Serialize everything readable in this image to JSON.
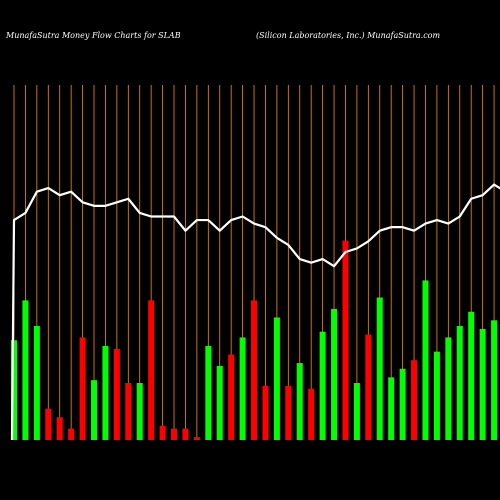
{
  "chart_data": {
    "type": "bar",
    "title_left": "MunafaSutra  Money Flow  Charts for SLAB",
    "title_right": "(Silicon  Laboratories,  Inc.) MunafaSutra.com",
    "grid": true,
    "grid_color": "#ff8c00",
    "up_color": "#00ff00",
    "down_color": "#ff0000",
    "line_color": "#ffffff",
    "ylim": [
      0,
      100
    ],
    "categories": [
      "",
      "",
      "",
      "",
      "",
      "",
      "",
      "",
      "",
      "",
      "",
      "",
      "",
      "",
      "",
      "",
      "",
      "",
      "",
      "",
      "",
      "",
      "",
      "",
      "",
      "",
      "",
      "",
      "",
      "",
      "",
      "",
      "",
      "",
      "",
      "",
      "",
      "",
      "",
      "",
      "",
      "",
      "",
      "",
      ""
    ],
    "colors": [
      "g",
      "g",
      "g",
      "r",
      "r",
      "r",
      "r",
      "g",
      "g",
      "r",
      "r",
      "g",
      "r",
      "r",
      "r",
      "r",
      "r",
      "g",
      "g",
      "r",
      "g",
      "r",
      "r",
      "g",
      "r",
      "g",
      "r",
      "g",
      "g",
      "r",
      "g",
      "r",
      "g",
      "g",
      "g",
      "r",
      "g",
      "g",
      "g",
      "g",
      "g",
      "g",
      "g",
      "g",
      "r"
    ],
    "values": [
      35,
      49,
      40,
      11,
      8,
      4,
      36,
      21,
      33,
      32,
      20,
      20,
      49,
      5,
      4,
      4,
      1,
      33,
      26,
      30,
      36,
      49,
      19,
      43,
      19,
      27,
      18,
      38,
      46,
      70,
      20,
      37,
      50,
      22,
      25,
      28,
      56,
      31,
      36,
      40,
      45,
      39,
      42,
      45,
      41
    ],
    "line": [
      69,
      71,
      77,
      78,
      76,
      77,
      74,
      73,
      73,
      74,
      75,
      71,
      70,
      70,
      70,
      66,
      69,
      69,
      66,
      69,
      70,
      68,
      67,
      64,
      62,
      58,
      57,
      58,
      56,
      60,
      61,
      63,
      66,
      67,
      67,
      66,
      68,
      69,
      68,
      70,
      75,
      76,
      79,
      77,
      76
    ]
  }
}
